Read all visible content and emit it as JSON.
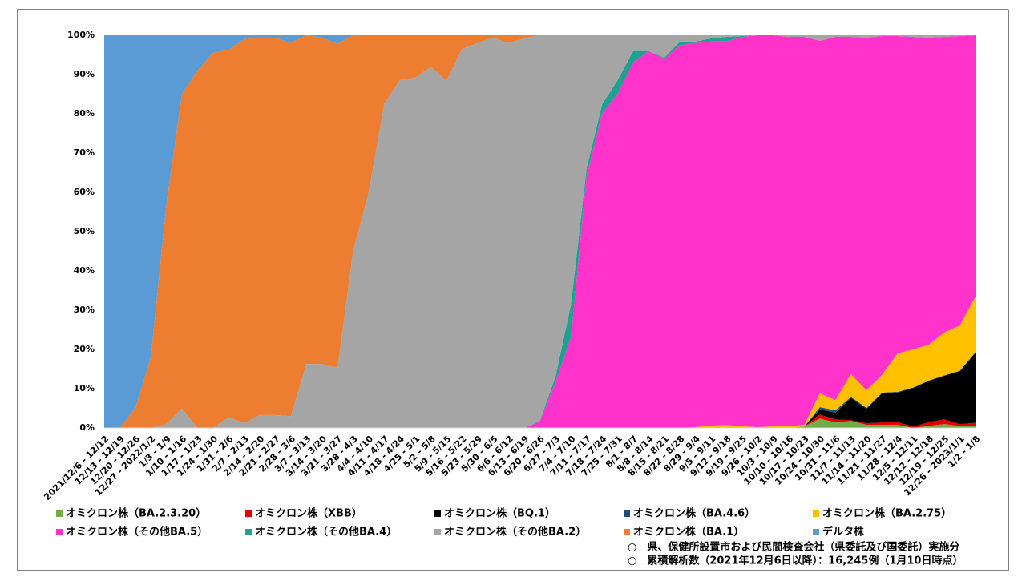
{
  "chart_data": {
    "type": "area",
    "stacked": true,
    "categories": [
      "2021/12/6 - 12/12",
      "12/13 - 12/19",
      "12/20 - 12/26",
      "12/27 - 2022/1/2",
      "1/3 - 1/9",
      "1/10 - 1/16",
      "1/17 - 1/23",
      "1/24 - 1/30",
      "1/31 - 2/6",
      "2/7 - 2/13",
      "2/14 - 2/20",
      "2/21 - 2/27",
      "2/28 - 3/6",
      "3/7 - 3/13",
      "3/14 - 3/20",
      "3/21 - 3/27",
      "3/28 - 4/3",
      "4/4 - 4/10",
      "4/11 - 4/17",
      "4/18 - 4/24",
      "4/25 - 5/1",
      "5/2 - 5/8",
      "5/9 - 5/15",
      "5/16 - 5/22",
      "5/23 - 5/29",
      "5/30 - 6/5",
      "6/6 - 6/12",
      "6/13 - 6/19",
      "6/20 - 6/26",
      "6/27 - 7/3",
      "7/4 - 7/10",
      "7/11 - 7/17",
      "7/18 - 7/24",
      "7/25 - 7/31",
      "8/1 - 8/7",
      "8/8 - 8/14",
      "8/15 - 8/21",
      "8/22 - 8/28",
      "8/29 - 9/4",
      "9/5 - 9/11",
      "9/12 - 9/18",
      "9/19 - 9/25",
      "9/26 - 10/2",
      "10/3 - 10/9",
      "10/10 - 10/16",
      "10/17 - 10/23",
      "10/24 - 10/30",
      "10/31 - 11/6",
      "11/7 - 11/13",
      "11/14 - 11/20",
      "11/21 - 11/27",
      "11/28 - 12/4",
      "12/5 - 12/11",
      "12/12 - 12/18",
      "12/19 - 12/25",
      "12/26 - 2023/1/1",
      "1/2 - 1/8"
    ],
    "series": [
      {
        "name": "オミクロン株（BA.2.3.20）",
        "color": "#70ad47",
        "values": [
          0,
          0,
          0,
          0,
          0,
          0,
          0,
          0,
          0,
          0,
          0,
          0,
          0,
          0,
          0,
          0,
          0,
          0,
          0,
          0,
          0,
          0,
          0,
          0,
          0,
          0,
          0,
          0,
          0,
          0,
          0,
          0,
          0,
          0,
          0,
          0,
          0,
          0,
          0,
          0,
          0,
          0,
          0,
          0,
          0,
          0.4,
          2.4,
          1.4,
          1.8,
          0.8,
          0.8,
          0.8,
          0,
          0.5,
          1,
          0.5,
          0.5
        ]
      },
      {
        "name": "オミクロン株（XBB）",
        "color": "#e00000",
        "values": [
          0,
          0,
          0,
          0,
          0,
          0,
          0,
          0,
          0,
          0,
          0,
          0,
          0,
          0,
          0,
          0,
          0,
          0,
          0,
          0,
          0,
          0,
          0,
          0,
          0,
          0,
          0,
          0,
          0,
          0,
          0,
          0,
          0,
          0,
          0,
          0,
          0,
          0,
          0,
          0,
          0,
          0,
          0,
          0,
          0,
          0,
          1,
          0.8,
          0.2,
          0.4,
          0.6,
          0.7,
          0.3,
          1,
          1.2,
          0.5,
          0.8
        ]
      },
      {
        "name": "オミクロン株（BQ.1）",
        "color": "#000000",
        "values": [
          0,
          0,
          0,
          0,
          0,
          0,
          0,
          0,
          0,
          0,
          0,
          0,
          0,
          0,
          0,
          0,
          0,
          0,
          0,
          0,
          0,
          0,
          0,
          0,
          0,
          0,
          0,
          0,
          0,
          0,
          0,
          0,
          0,
          0,
          0,
          0,
          0,
          0,
          0,
          0,
          0,
          0,
          0,
          0,
          0,
          0,
          1.3,
          1.7,
          5.6,
          3.7,
          7.4,
          7.5,
          9.9,
          10.5,
          11.1,
          13.5,
          17.9
        ]
      },
      {
        "name": "オミクロン株（BA.4.6）",
        "color": "#1f4e79",
        "values": [
          0,
          0,
          0,
          0,
          0,
          0,
          0,
          0,
          0,
          0,
          0,
          0,
          0,
          0,
          0,
          0,
          0,
          0,
          0,
          0,
          0,
          0,
          0,
          0,
          0,
          0,
          0,
          0,
          0,
          0,
          0,
          0,
          0,
          0,
          0,
          0,
          0,
          0,
          0,
          0,
          0,
          0,
          0,
          0,
          0,
          0,
          0.6,
          0.6,
          0.3,
          0.2,
          0.2,
          0.2,
          0.1,
          0.1,
          0.1,
          0.1,
          0.1
        ]
      },
      {
        "name": "オミクロン株（BA.2.75）",
        "color": "#ffc000",
        "values": [
          0,
          0,
          0,
          0,
          0,
          0,
          0,
          0,
          0,
          0,
          0,
          0,
          0,
          0,
          0,
          0,
          0,
          0,
          0,
          0,
          0,
          0,
          0,
          0,
          0,
          0,
          0,
          0,
          0,
          0,
          0,
          0,
          0,
          0,
          0,
          0,
          0,
          0,
          0.2,
          0.6,
          0.8,
          0.4,
          0.2,
          0.4,
          0.4,
          0.4,
          3.5,
          2.6,
          5.8,
          4.5,
          4.5,
          9.8,
          9.7,
          9.1,
          10.9,
          11.5,
          14.2
        ]
      },
      {
        "name": "オミクロン株（その他BA.5）",
        "color": "#ff33cc",
        "values": [
          0,
          0,
          0,
          0,
          0,
          0,
          0,
          0,
          0,
          0,
          0,
          0,
          0,
          0,
          0,
          0,
          0,
          0,
          0,
          0,
          0,
          0,
          0,
          0,
          0,
          0,
          0,
          0,
          1.6,
          11.6,
          23,
          64,
          80,
          85,
          93,
          96,
          94,
          97.5,
          97.8,
          97.8,
          97.6,
          99.2,
          99.8,
          99.6,
          99.2,
          98.8,
          89.8,
          92.5,
          85.9,
          89.8,
          86.3,
          80.8,
          79.6,
          78.2,
          75.3,
          73.7,
          66.5
        ]
      },
      {
        "name": "オミクロン株（その他BA.4）",
        "color": "#20a090",
        "values": [
          0,
          0,
          0,
          0,
          0,
          0,
          0,
          0,
          0,
          0,
          0,
          0,
          0,
          0,
          0,
          0,
          0,
          0,
          0,
          0,
          0,
          0,
          0,
          0,
          0,
          0,
          0,
          0,
          0.2,
          1.4,
          8.4,
          2,
          2.4,
          3.6,
          3,
          0,
          0.3,
          0.9,
          0.4,
          0.8,
          1.2,
          0.2,
          0,
          0,
          0,
          0,
          0,
          0,
          0,
          0,
          0,
          0,
          0,
          0,
          0,
          0,
          0
        ]
      },
      {
        "name": "オミクロン株（その他BA.2）",
        "color": "#a5a5a5",
        "values": [
          0,
          0,
          0,
          0,
          1,
          5,
          0,
          0,
          2.7,
          1.2,
          3.3,
          3.3,
          3,
          16.3,
          16.3,
          15.3,
          45,
          60,
          82.5,
          88.6,
          89.2,
          92,
          88.4,
          96.5,
          98,
          99.4,
          98,
          99.2,
          98.2,
          87,
          68.6,
          34,
          17.6,
          11.4,
          4,
          4,
          5.7,
          1.6,
          1.6,
          0.8,
          0.4,
          0.2,
          0,
          0,
          0.4,
          0.4,
          1.4,
          0.4,
          0.4,
          0.6,
          0.2,
          0.2,
          0.4,
          0.6,
          0.4,
          0.2,
          0
        ]
      },
      {
        "name": "オミクロン株（BA.1）",
        "color": "#ed7d31",
        "values": [
          0,
          0,
          5,
          18,
          56,
          80,
          91,
          95.5,
          93.6,
          97.8,
          96.1,
          96.1,
          95,
          83.7,
          83.1,
          82.5,
          55,
          40,
          17.5,
          11.4,
          10.8,
          8,
          11.6,
          3.5,
          2,
          0.6,
          2,
          0.8,
          0,
          0,
          0,
          0,
          0,
          0,
          0,
          0,
          0,
          0,
          0,
          0,
          0,
          0,
          0,
          0,
          0,
          0,
          0,
          0,
          0,
          0,
          0,
          0,
          0,
          0,
          0,
          0,
          0
        ]
      },
      {
        "name": "デルタ株",
        "color": "#5b9bd5",
        "values": [
          100,
          100,
          95,
          82,
          43,
          15,
          9,
          4.5,
          3.7,
          1,
          0.6,
          0.6,
          2,
          0,
          0.6,
          2.2,
          0,
          0,
          0,
          0,
          0,
          0,
          0,
          0,
          0,
          0,
          0,
          0,
          0,
          0,
          0,
          0,
          0,
          0,
          0,
          0,
          0,
          0,
          0,
          0,
          0,
          0,
          0,
          0,
          0,
          0,
          0,
          0,
          0,
          0,
          0,
          0,
          0,
          0,
          0,
          0,
          0
        ]
      }
    ],
    "ylim": [
      0,
      100
    ],
    "yticks": [
      {
        "value": 0,
        "label": "0%"
      },
      {
        "value": 10,
        "label": "10%"
      },
      {
        "value": 20,
        "label": "20%"
      },
      {
        "value": 30,
        "label": "30%"
      },
      {
        "value": 40,
        "label": "40%"
      },
      {
        "value": 50,
        "label": "50%"
      },
      {
        "value": 60,
        "label": "60%"
      },
      {
        "value": 70,
        "label": "70%"
      },
      {
        "value": 80,
        "label": "80%"
      },
      {
        "value": 90,
        "label": "90%"
      },
      {
        "value": 100,
        "label": "100%"
      }
    ],
    "legend": "bottom",
    "notes": [
      "○　県、保健所設置市および民間検査会社（県委託及び国委託）実施分",
      "○　累積解析数（2021年12月6日以降）：16,245例（1月10日時点）"
    ]
  }
}
